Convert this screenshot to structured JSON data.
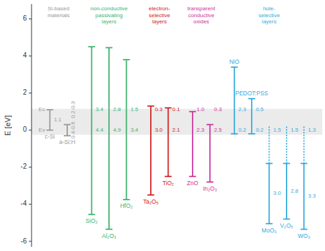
{
  "chart_data": {
    "type": "range",
    "ylabel": "E [eV]",
    "ylim": [
      -6.3,
      6.8
    ],
    "yticks": [
      -6,
      -4,
      -2,
      0,
      2,
      4,
      6
    ],
    "grid": false,
    "categories": [
      "c-Si",
      "a-Si:H",
      "SiO₂",
      "Al₂O₃",
      "HfO₂",
      "Ta₂O₅",
      "TiO₂",
      "ZnO",
      "In₂O₃",
      "NiO",
      "PEDOT:PSS",
      "MoO₃",
      "V₂O₅",
      "WO₃"
    ],
    "high": [
      1.1,
      0.3,
      4.5,
      4.45,
      3.8,
      1.3,
      1.2,
      1.0,
      0.3,
      3.4,
      1.7,
      -1.8,
      -1.8,
      -1.8
    ],
    "low": [
      0.0,
      -0.3,
      -4.55,
      -5.35,
      -3.75,
      -3.5,
      -2.5,
      -2.5,
      -2.8,
      -0.2,
      -0.2,
      -5.05,
      -4.8,
      -5.35
    ],
    "dotted_high": [
      null,
      null,
      null,
      null,
      null,
      null,
      null,
      null,
      null,
      null,
      null,
      0.22,
      0.22,
      0.22
    ],
    "dotted_low": [
      null,
      null,
      null,
      null,
      null,
      null,
      null,
      null,
      null,
      null,
      null,
      -1.8,
      -1.8,
      -1.8
    ],
    "shade": {
      "low": -0.25,
      "high": 1.15
    },
    "high_labels": [
      "Ec",
      null,
      null,
      null,
      null,
      null,
      null,
      null,
      null,
      null,
      null,
      null,
      null,
      null
    ],
    "low_labels": [
      "Ev",
      null,
      null,
      null,
      null,
      null,
      null,
      null,
      null,
      null,
      null,
      null,
      null,
      null
    ],
    "cb_offset_labels": [
      null,
      "0.2-0.3",
      "3.4",
      "2.8",
      "1.5",
      "0.3",
      "0.1",
      "1.0",
      "0.3",
      "2.3",
      "0.5",
      null,
      null,
      null
    ],
    "vb_offset_labels": [
      null,
      null,
      "4.4",
      "4.9",
      "3.4",
      "3.0",
      "2.1",
      "2.3",
      "2.5",
      "0.2",
      "0.2",
      "1.5",
      "1.5",
      "1.3"
    ],
    "gap_labels": [
      "1.1",
      "0.4-0.6",
      null,
      null,
      null,
      null,
      null,
      null,
      null,
      null,
      null,
      "3.0",
      "2.8",
      "3.3"
    ],
    "groups": [
      {
        "name": "Si-based\nmaterials",
        "color": "#999999",
        "members": [
          "c-Si",
          "a-Si:H"
        ]
      },
      {
        "name": "non-conductive\npassivating\nlayers",
        "color": "#3db36b",
        "members": [
          "SiO₂",
          "Al₂O₃",
          "HfO₂"
        ]
      },
      {
        "name": "electron-\nselective\nlayers",
        "color": "#cc2222",
        "members": [
          "Ta₂O₅",
          "TiO₂"
        ]
      },
      {
        "name": "transparent\nconductive\noxides",
        "color": "#cc3399",
        "members": [
          "ZnO",
          "In₂O₃"
        ]
      },
      {
        "name": "hole-\nselective\nlayers",
        "color": "#33aadd",
        "members": [
          "NiO",
          "PEDOT:PSS",
          "MoO₃",
          "V₂O₅",
          "WO₃"
        ]
      }
    ]
  }
}
